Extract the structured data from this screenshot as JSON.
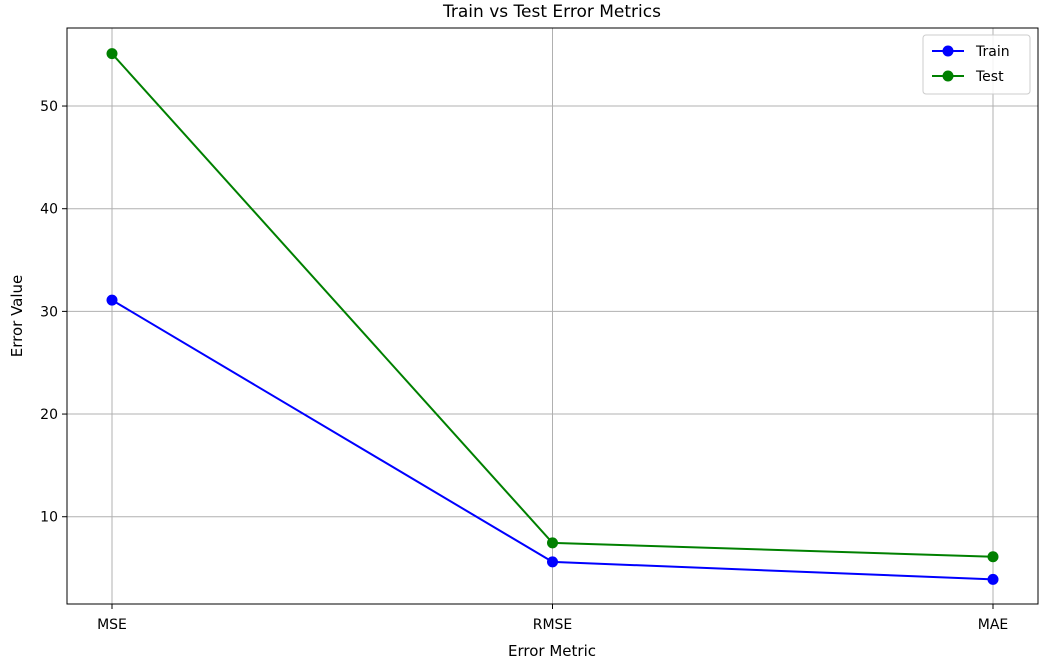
{
  "chart_data": {
    "type": "line",
    "title": "Train vs Test Error Metrics",
    "xlabel": "Error Metric",
    "ylabel": "Error Value",
    "categories": [
      "MSE",
      "RMSE",
      "MAE"
    ],
    "series": [
      {
        "name": "Train",
        "values": [
          31.1,
          5.6,
          3.9
        ],
        "color": "#0000ff",
        "marker": "circle"
      },
      {
        "name": "Test",
        "values": [
          55.1,
          7.45,
          6.1
        ],
        "color": "#008000",
        "marker": "circle"
      }
    ],
    "ylim": [
      1.5,
      57.6
    ],
    "yticks": [
      10,
      20,
      30,
      40,
      50
    ],
    "grid": true,
    "legend": "top-right"
  }
}
